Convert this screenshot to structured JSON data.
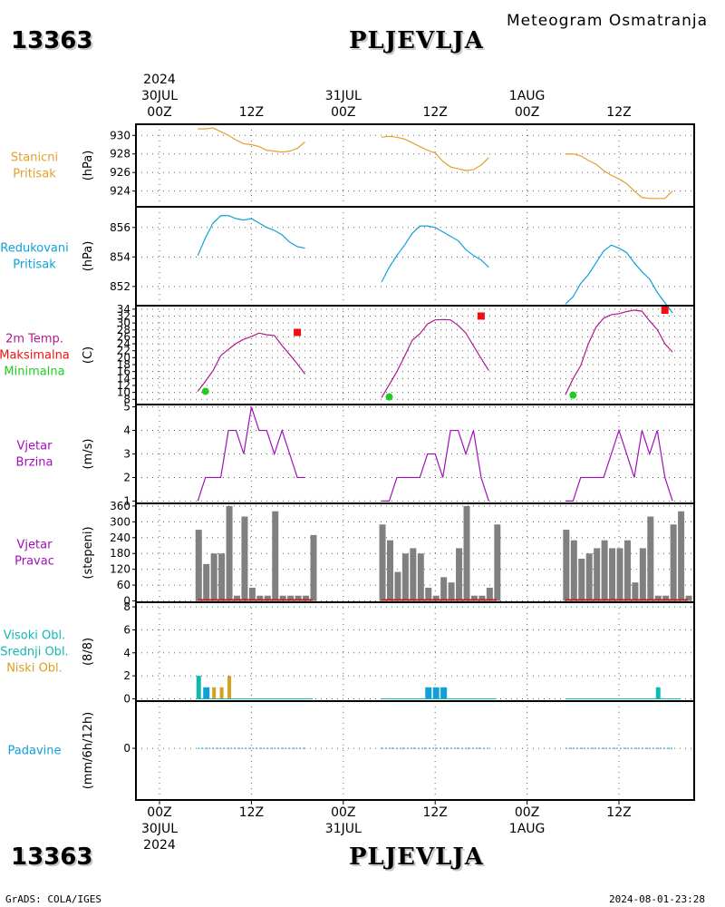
{
  "header": {
    "station_id": "13363",
    "station_name": "PLJEVLJA",
    "product_title": "Meteogram Osmatranja"
  },
  "footer": {
    "left_text": "GrADS: COLA/IGES",
    "right_text": "2024-08-01-23:28"
  },
  "time_axis": {
    "year": "2024",
    "ticks": [
      {
        "top": "00Z",
        "date": "30JUL"
      },
      {
        "top": "12Z",
        "date": ""
      },
      {
        "top": "00Z",
        "date": "31JUL"
      },
      {
        "top": "12Z",
        "date": ""
      },
      {
        "top": "00Z",
        "date": "1AUG"
      },
      {
        "top": "12Z",
        "date": ""
      }
    ]
  },
  "colors": {
    "station_pressure": "#e0a030",
    "reduced_pressure": "#10a0d8",
    "temperature": "#b01890",
    "tmax": "#ee1010",
    "tmin": "#20cc20",
    "wind": "#a010b8",
    "bars": "#808080",
    "bar_base": "#c02020",
    "cloud_high": "#10b8b0",
    "cloud_mid": "#10a0d8",
    "cloud_low": "#d8a020",
    "precip": "#10a0d8"
  },
  "chart_data": [
    {
      "type": "line",
      "id": "station_pressure",
      "label_lines": [
        "Stanicni",
        "Pritisak"
      ],
      "ylabel": "(hPa)",
      "yticks": [
        924,
        926,
        928,
        930
      ],
      "ylim": [
        922.3,
        931.2
      ],
      "x_unit": "hours since 30JUL 00Z",
      "segments": [
        {
          "x": [
            5,
            6,
            7,
            8,
            9,
            10,
            11,
            12,
            13,
            14,
            15,
            16,
            17,
            18,
            19
          ],
          "values": [
            930.7,
            930.7,
            930.8,
            930.4,
            930.0,
            929.5,
            929.1,
            929.0,
            928.8,
            928.4,
            928.3,
            928.2,
            928.3,
            928.6,
            929.3
          ]
        },
        {
          "x": [
            29,
            30,
            31,
            32,
            33,
            34,
            35,
            36,
            37,
            38,
            39,
            40,
            41,
            42,
            43
          ],
          "values": [
            929.8,
            929.9,
            929.8,
            929.6,
            929.2,
            928.8,
            928.4,
            928.1,
            927.2,
            926.6,
            926.4,
            926.2,
            926.3,
            926.8,
            927.6
          ]
        },
        {
          "x": [
            53,
            54,
            55,
            56,
            57,
            58,
            59,
            60,
            61,
            62,
            63,
            64,
            65,
            66,
            67
          ],
          "values": [
            928.0,
            928.0,
            927.8,
            927.3,
            926.9,
            926.2,
            925.7,
            925.3,
            924.8,
            924.0,
            923.3,
            923.2,
            923.2,
            923.2,
            924.0
          ]
        }
      ]
    },
    {
      "type": "line",
      "id": "reduced_pressure",
      "label_lines": [
        "Redukovani",
        "Pritisak"
      ],
      "ylabel": "(hPa)",
      "yticks": [
        852,
        854,
        856
      ],
      "ylim": [
        850.7,
        857.4
      ],
      "x_unit": "hours since 30JUL 00Z",
      "segments": [
        {
          "x": [
            5,
            6,
            7,
            8,
            9,
            10,
            11,
            12,
            13,
            14,
            15,
            16,
            17,
            18,
            19
          ],
          "values": [
            854.1,
            855.3,
            856.3,
            856.8,
            856.8,
            856.6,
            856.5,
            856.6,
            856.3,
            856.0,
            855.8,
            855.5,
            855.0,
            854.7,
            854.6
          ]
        },
        {
          "x": [
            29,
            30,
            31,
            32,
            33,
            34,
            35,
            36,
            37,
            38,
            39,
            40,
            41,
            42,
            43
          ],
          "values": [
            852.3,
            853.3,
            854.1,
            854.8,
            855.6,
            856.1,
            856.1,
            856.0,
            855.7,
            855.4,
            855.1,
            854.5,
            854.1,
            853.8,
            853.3
          ]
        },
        {
          "x": [
            53,
            54,
            55,
            56,
            57,
            58,
            59,
            60,
            61,
            62,
            63,
            64,
            65,
            66,
            67
          ],
          "values": [
            850.8,
            851.3,
            852.2,
            852.8,
            853.6,
            854.4,
            854.8,
            854.6,
            854.3,
            853.6,
            853.0,
            852.5,
            851.6,
            850.9,
            850.2
          ]
        }
      ]
    },
    {
      "type": "line",
      "id": "temperature",
      "label_lines": [
        "2m Temp.",
        "Maksimalna",
        "Minimalna"
      ],
      "ylabel": "(C)",
      "yticks": [
        8,
        10,
        12,
        14,
        16,
        18,
        20,
        22,
        24,
        26,
        28,
        30,
        32,
        34
      ],
      "ylim": [
        6.5,
        35
      ],
      "x_unit": "hours since 30JUL 00Z",
      "segments": [
        {
          "x": [
            5,
            6,
            7,
            8,
            9,
            10,
            11,
            12,
            13,
            14,
            15,
            16,
            17,
            18,
            19
          ],
          "values": [
            10.3,
            13.2,
            16.3,
            20.6,
            22.4,
            24.1,
            25.3,
            26.1,
            27.1,
            26.6,
            26.4,
            23.5,
            20.9,
            18.2,
            15.3
          ]
        },
        {
          "x": [
            29,
            30,
            31,
            32,
            33,
            34,
            35,
            36,
            37,
            38,
            39,
            40,
            41,
            42,
            43
          ],
          "values": [
            8.5,
            12.2,
            16.0,
            20.4,
            25.0,
            26.9,
            29.7,
            30.9,
            31.0,
            30.9,
            29.3,
            27.1,
            23.4,
            19.8,
            16.3
          ]
        },
        {
          "x": [
            53,
            54,
            55,
            56,
            57,
            58,
            59,
            60,
            61,
            62,
            63,
            64,
            65,
            66,
            67
          ],
          "values": [
            9.3,
            13.9,
            17.7,
            24.0,
            28.8,
            31.4,
            32.4,
            32.7,
            33.3,
            33.7,
            33.4,
            30.6,
            28.1,
            24.0,
            21.6
          ]
        }
      ],
      "maxima": [
        {
          "x": 18,
          "value": 27.3
        },
        {
          "x": 42,
          "value": 32.0
        },
        {
          "x": 66,
          "value": 33.7
        }
      ],
      "minima": [
        {
          "x": 6,
          "value": 10.3
        },
        {
          "x": 30,
          "value": 8.7
        },
        {
          "x": 54,
          "value": 9.2
        }
      ]
    },
    {
      "type": "line",
      "id": "wind_speed",
      "label_lines": [
        "Vjetar",
        "Brzina"
      ],
      "ylabel": "(m/s)",
      "yticks": [
        1,
        2,
        3,
        4,
        5
      ],
      "ylim": [
        0.9,
        5.1
      ],
      "x_unit": "hours since 30JUL 00Z",
      "segments": [
        {
          "x": [
            5,
            6,
            7,
            8,
            9,
            10,
            11,
            12,
            13,
            14,
            15,
            16,
            17,
            18,
            19
          ],
          "values": [
            1,
            2,
            2,
            2,
            4,
            4,
            3,
            5,
            4,
            4,
            3,
            4,
            3,
            2,
            2
          ]
        },
        {
          "x": [
            29,
            30,
            31,
            32,
            33,
            34,
            35,
            36,
            37,
            38,
            39,
            40,
            41,
            42,
            43
          ],
          "values": [
            1,
            1,
            2,
            2,
            2,
            2,
            3,
            3,
            2,
            4,
            4,
            3,
            4,
            2,
            1
          ]
        },
        {
          "x": [
            53,
            54,
            55,
            56,
            57,
            58,
            59,
            60,
            61,
            62,
            63,
            64,
            65,
            66,
            67
          ],
          "values": [
            1,
            1,
            2,
            2,
            2,
            2,
            3,
            4,
            3,
            2,
            4,
            3,
            4,
            2,
            1
          ]
        }
      ]
    },
    {
      "type": "bar",
      "id": "wind_direction",
      "label_lines": [
        "Vjetar",
        "Pravac"
      ],
      "ylabel": "(stepeni)",
      "yticks": [
        0,
        60,
        120,
        180,
        240,
        300,
        360
      ],
      "ylim": [
        -5,
        370
      ],
      "x_unit": "hours since 30JUL 00Z",
      "segments": [
        {
          "x": [
            5,
            6,
            7,
            8,
            9,
            10,
            11,
            12,
            13,
            14,
            15,
            16,
            17,
            18,
            19
          ],
          "values": [
            270,
            140,
            180,
            180,
            360,
            20,
            320,
            50,
            20,
            20,
            340,
            20,
            20,
            20,
            20
          ]
        },
        {
          "x": [
            29,
            30,
            31,
            32,
            33,
            34,
            35,
            36,
            37,
            38,
            39,
            40,
            41,
            42,
            43
          ],
          "values": [
            290,
            230,
            110,
            180,
            200,
            180,
            50,
            20,
            90,
            70,
            200,
            360,
            20,
            20,
            50
          ]
        },
        {
          "x": [
            53,
            54,
            55,
            56,
            57,
            58,
            59,
            60,
            61,
            62,
            63,
            64,
            65,
            66,
            67
          ],
          "values": [
            270,
            230,
            160,
            180,
            200,
            230,
            200,
            200,
            230,
            70,
            200,
            320,
            20,
            20,
            290
          ]
        }
      ],
      "extra_bars": [
        {
          "x": 20,
          "value": 250
        },
        {
          "x": 44,
          "value": 290
        },
        {
          "x": 68,
          "value": 340
        },
        {
          "x": 69,
          "value": 20
        }
      ]
    },
    {
      "type": "bar",
      "id": "clouds",
      "label_lines": [
        "Visoki Obl.",
        "Srednji Obl.",
        "Niski Obl."
      ],
      "ylabel": "(8/8)",
      "yticks": [
        0,
        2,
        4,
        6,
        8
      ],
      "ylim": [
        -0.2,
        8.4
      ],
      "x_unit": "hours since 30JUL 00Z",
      "series": [
        {
          "name": "Visoki Obl.",
          "points": [
            {
              "x": 5,
              "value": 2
            },
            {
              "x": 65,
              "value": 1
            }
          ]
        },
        {
          "name": "Srednji Obl.",
          "points": [
            {
              "x": 6,
              "value": 1
            },
            {
              "x": 35,
              "value": 1
            },
            {
              "x": 36,
              "value": 1
            },
            {
              "x": 37,
              "value": 1
            }
          ]
        },
        {
          "name": "Niski Obl.",
          "points": [
            {
              "x": 7,
              "value": 1
            },
            {
              "x": 8,
              "value": 1
            },
            {
              "x": 9,
              "value": 2
            }
          ]
        }
      ]
    },
    {
      "type": "line",
      "id": "precipitation",
      "label_lines": [
        "Padavine"
      ],
      "ylabel": "(mm/6h/12h)",
      "yticks": [
        0
      ],
      "ylim": [
        -4.7,
        4.3
      ],
      "x_unit": "hours since 30JUL 00Z",
      "segments": [
        {
          "x": [
            5,
            19
          ],
          "values": [
            0,
            0
          ]
        },
        {
          "x": [
            29,
            43
          ],
          "values": [
            0,
            0
          ]
        },
        {
          "x": [
            53,
            67
          ],
          "values": [
            0,
            0
          ]
        }
      ]
    }
  ]
}
